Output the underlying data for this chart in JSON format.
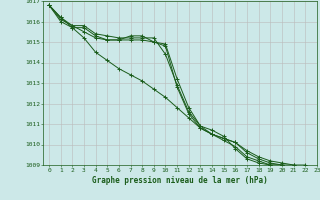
{
  "title": "Graphe pression niveau de la mer (hPa)",
  "background_color": "#cce8e8",
  "grid_color": "#bbbbbb",
  "line_color": "#1a5c1a",
  "xlim": [
    -0.5,
    23
  ],
  "ylim": [
    1009,
    1017
  ],
  "xticks": [
    0,
    1,
    2,
    3,
    4,
    5,
    6,
    7,
    8,
    9,
    10,
    11,
    12,
    13,
    14,
    15,
    16,
    17,
    18,
    19,
    20,
    21,
    22,
    23
  ],
  "yticks": [
    1009,
    1010,
    1011,
    1012,
    1013,
    1014,
    1015,
    1016,
    1017
  ],
  "series": [
    [
      1016.8,
      1016.2,
      1015.7,
      1015.7,
      1015.3,
      1015.1,
      1015.1,
      1015.3,
      1015.3,
      1015.0,
      1014.9,
      1013.2,
      1011.8,
      1010.9,
      1010.7,
      1010.4,
      1009.8,
      1009.3,
      1009.1,
      1009.0,
      1009.0,
      1009.0,
      1008.9,
      1008.8
    ],
    [
      1016.8,
      1016.2,
      1015.8,
      1015.8,
      1015.4,
      1015.3,
      1015.2,
      1015.2,
      1015.2,
      1015.2,
      1014.4,
      1012.9,
      1011.6,
      1010.9,
      1010.5,
      1010.3,
      1010.1,
      1009.6,
      1009.3,
      1009.1,
      1009.0,
      1008.9,
      1008.9,
      1008.8
    ],
    [
      1016.8,
      1016.0,
      1015.7,
      1015.2,
      1014.5,
      1014.1,
      1013.7,
      1013.4,
      1013.1,
      1012.7,
      1012.3,
      1011.8,
      1011.3,
      1010.8,
      1010.5,
      1010.3,
      1010.1,
      1009.7,
      1009.4,
      1009.2,
      1009.1,
      1009.0,
      1009.0,
      1008.8
    ],
    [
      1016.8,
      1016.1,
      1015.8,
      1015.5,
      1015.2,
      1015.1,
      1015.1,
      1015.1,
      1015.1,
      1015.0,
      1014.8,
      1012.8,
      1011.5,
      1010.8,
      1010.5,
      1010.2,
      1009.9,
      1009.4,
      1009.2,
      1009.0,
      1009.0,
      1008.9,
      1008.9,
      1008.8
    ]
  ],
  "figsize": [
    3.2,
    2.0
  ],
  "dpi": 100
}
